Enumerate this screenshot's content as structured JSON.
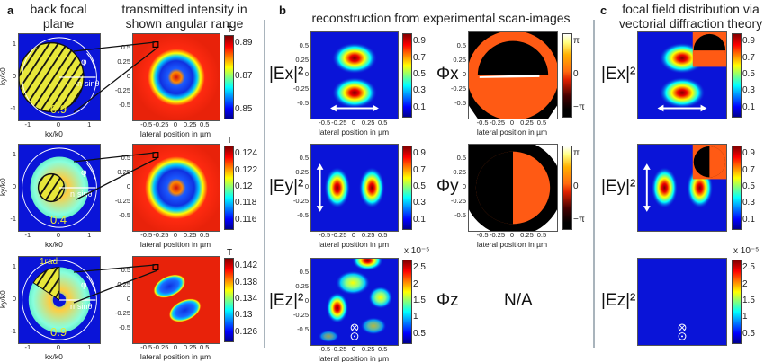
{
  "panels": {
    "a": {
      "label": "a",
      "title_left": "back focal plane",
      "title_right": "transmitted intensity in shown angular range"
    },
    "b": {
      "label": "b",
      "title": "reconstruction from experimental scan-images"
    },
    "c": {
      "label": "c",
      "title": "focal field distribution via vectorial diffraction theory"
    }
  },
  "bfp": {
    "ylabel": "ky/k0",
    "xlabel": "kx/k0",
    "ticks": [
      "-1",
      "0",
      "1"
    ],
    "na_labels": [
      "0.9",
      "0.4",
      "0.9"
    ],
    "phi_label": "φ",
    "sin_label": "n·sinθ",
    "sector_label": "1rad"
  },
  "lateral_axis": {
    "xlabel": "lateral position in µm",
    "ticks": [
      "-0.5",
      "-0.25",
      "0",
      "0.25",
      "0.5"
    ]
  },
  "transmission": {
    "unit": "T",
    "colorbars": [
      [
        "0.89",
        "0.87",
        "0.85"
      ],
      [
        "0.124",
        "0.122",
        "0.12",
        "0.118",
        "0.116"
      ],
      [
        "0.142",
        "0.138",
        "0.134",
        "0.13",
        "0.126"
      ]
    ]
  },
  "rows": {
    "ex": {
      "label": "|Ex|²",
      "phase_label": "Φx"
    },
    "ey": {
      "label": "|Ey|²",
      "phase_label": "Φy"
    },
    "ez": {
      "label": "|Ez|²",
      "phase_label": "Φz",
      "phase_value": "N/A"
    }
  },
  "intensity_colorbar": [
    "0.9",
    "0.7",
    "0.5",
    "0.3",
    "0.1"
  ],
  "ez_colorbar": {
    "exponent": "x 10⁻⁵",
    "ticks": [
      "2.5",
      "2",
      "1.5",
      "1",
      "0.5"
    ]
  },
  "phase_colorbar": [
    "π",
    "0",
    "−π"
  ],
  "colors": {
    "map_blue": "#0a14d8",
    "map_red": "#e8220a",
    "hatch_yellow": "#e8e83a",
    "phase_orange": "#ff5a14",
    "separator": "#a9b4bc"
  },
  "chart_data": {
    "type": "heatmap",
    "colormap": "jet",
    "grid": false,
    "maps": [
      {
        "panel": "a",
        "row": 1,
        "kind": "back focal plane",
        "NA": "0.9",
        "xlim": [
          -1.3,
          1.3
        ],
        "ylim": [
          -1.3,
          1.3
        ]
      },
      {
        "panel": "a",
        "row": 1,
        "kind": "transmission",
        "clim": [
          0.845,
          0.9
        ],
        "xlim": [
          -0.6,
          0.6
        ],
        "ylim": [
          -0.6,
          0.6
        ]
      },
      {
        "panel": "a",
        "row": 2,
        "kind": "back focal plane",
        "NA": "0.4"
      },
      {
        "panel": "a",
        "row": 2,
        "kind": "transmission",
        "clim": [
          0.116,
          0.125
        ]
      },
      {
        "panel": "a",
        "row": 3,
        "kind": "back focal plane",
        "NA": "0.9",
        "sector": "1rad"
      },
      {
        "panel": "a",
        "row": 3,
        "kind": "transmission",
        "clim": [
          0.125,
          0.144
        ]
      },
      {
        "panel": "b",
        "field": "|Ex|²",
        "clim": [
          0,
          1
        ]
      },
      {
        "panel": "b",
        "field": "Φx",
        "clim": [
          "-π",
          "π"
        ]
      },
      {
        "panel": "b",
        "field": "|Ey|²",
        "clim": [
          0,
          1
        ]
      },
      {
        "panel": "b",
        "field": "Φy",
        "clim": [
          "-π",
          "π"
        ]
      },
      {
        "panel": "b",
        "field": "|Ez|²",
        "clim": [
          0,
          2.8e-05
        ]
      },
      {
        "panel": "c",
        "field": "|Ex|²",
        "clim": [
          0,
          1
        ]
      },
      {
        "panel": "c",
        "field": "|Ey|²",
        "clim": [
          0,
          1
        ]
      },
      {
        "panel": "c",
        "field": "|Ez|²",
        "clim": [
          0,
          2.8e-05
        ]
      }
    ]
  }
}
